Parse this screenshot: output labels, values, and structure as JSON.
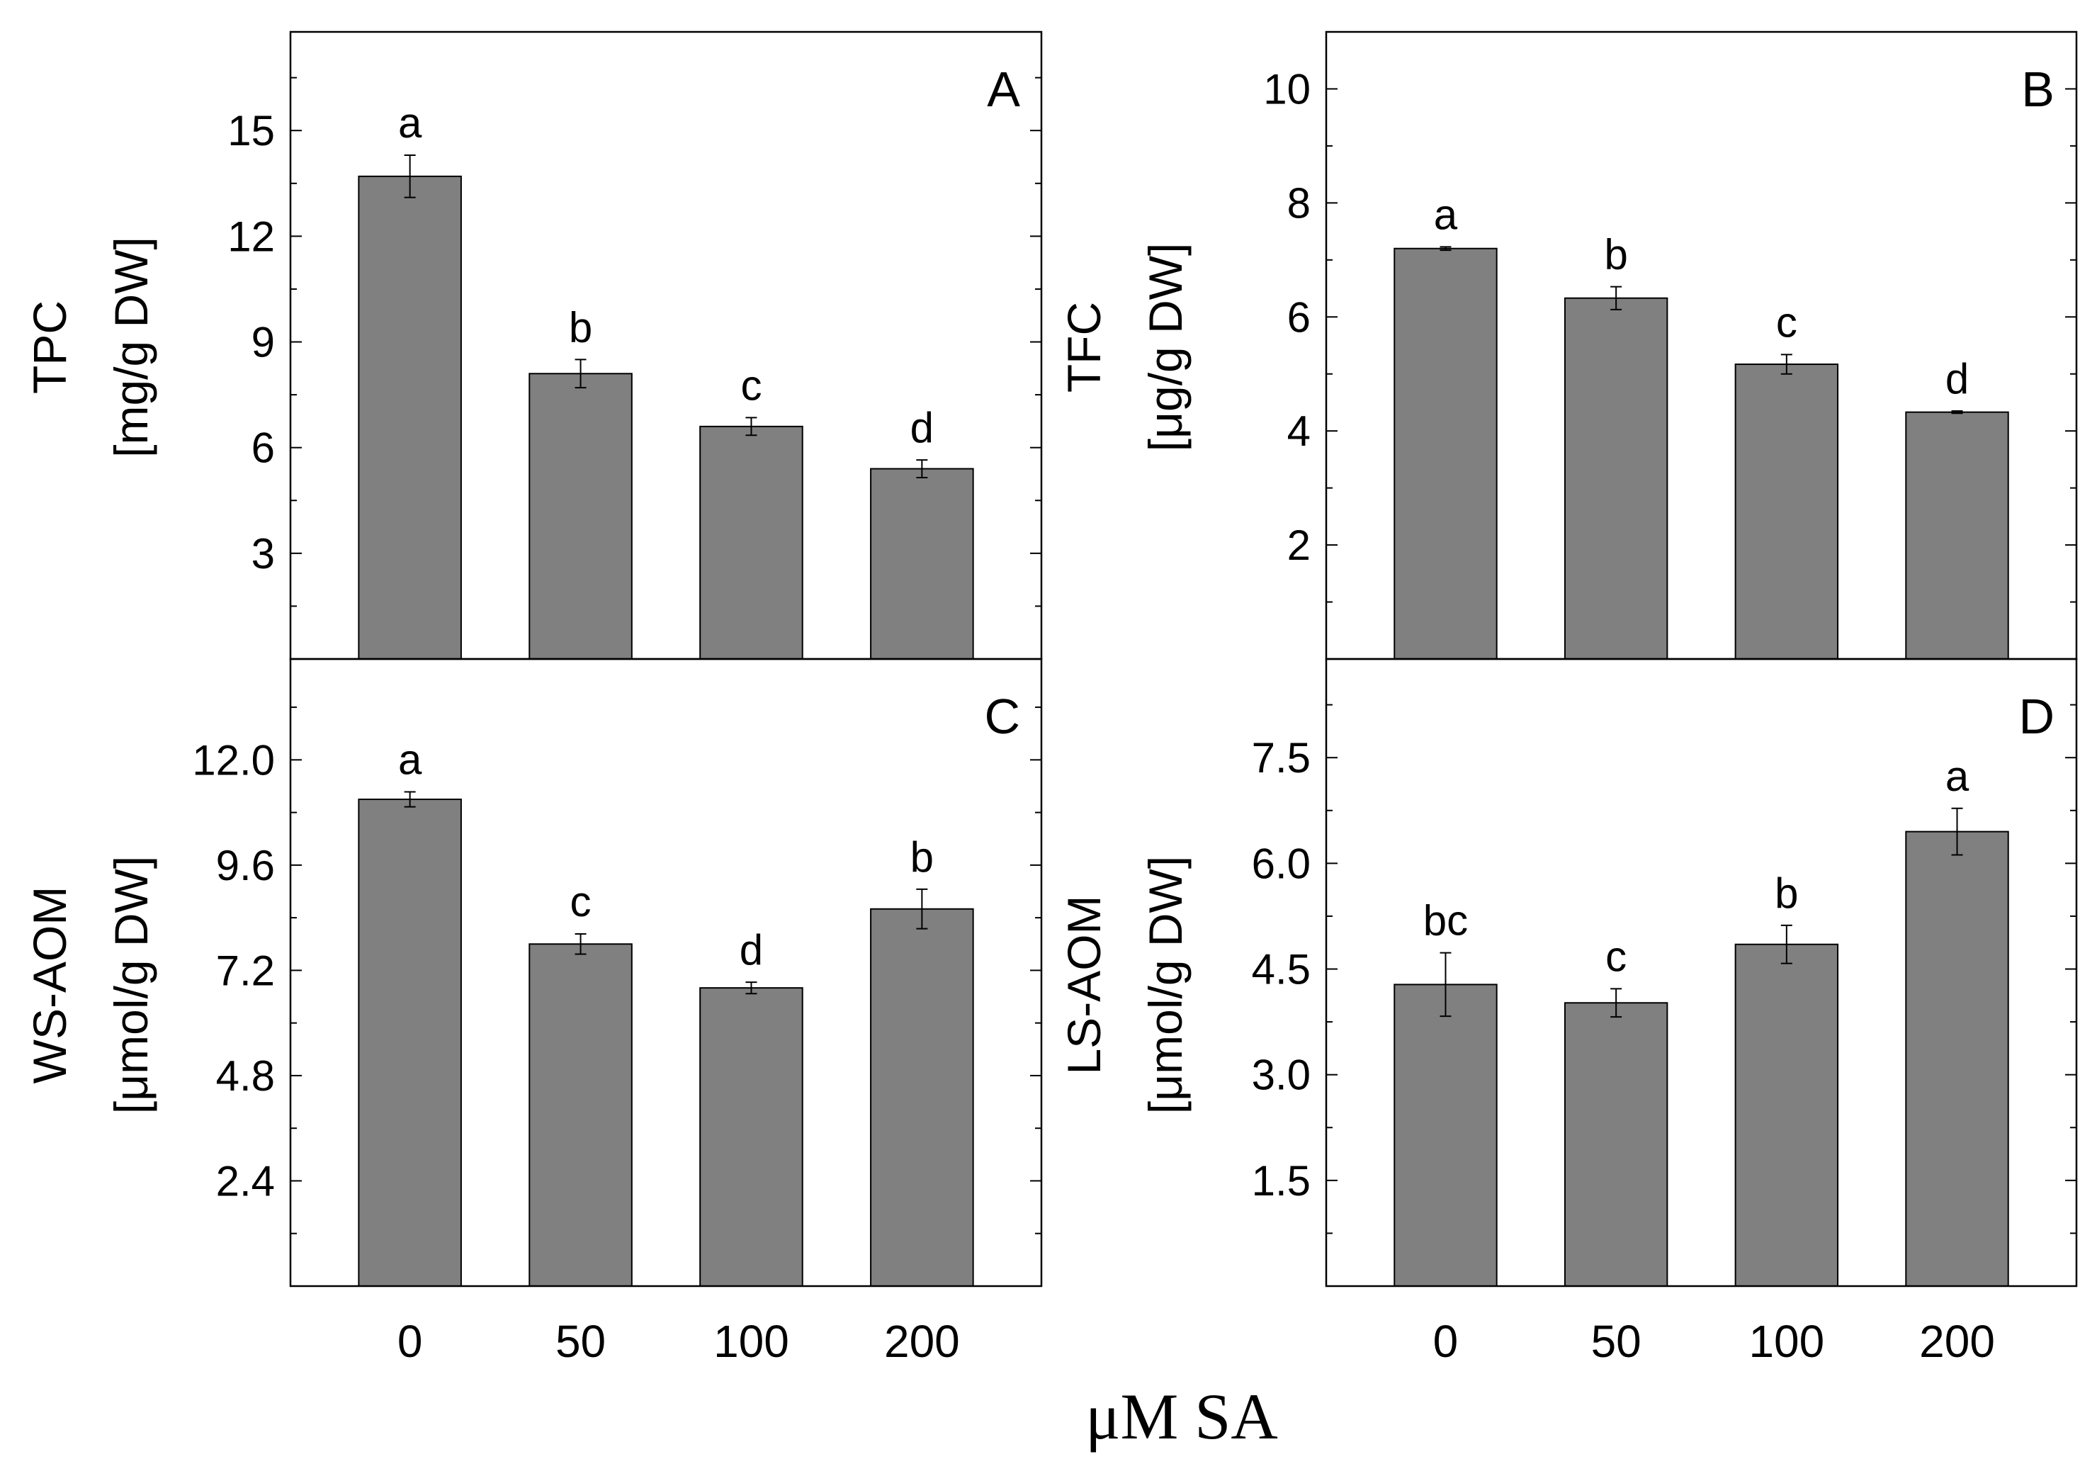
{
  "chart_data": [
    {
      "id": "A",
      "type": "bar",
      "panel_label": "A",
      "categories": [
        "0",
        "50",
        "100",
        "200"
      ],
      "values": [
        13.7,
        8.1,
        6.6,
        5.4
      ],
      "errors": [
        0.6,
        0.4,
        0.25,
        0.25
      ],
      "significance": [
        "a",
        "b",
        "c",
        "d"
      ],
      "ylabel_line1": "TPC",
      "ylabel_line2": "[mg/g DW]",
      "ylim": [
        0,
        17.8
      ],
      "yticks": [
        3,
        6,
        9,
        12,
        15
      ],
      "ytick_labels": [
        "3",
        "6",
        "9",
        "12",
        "15"
      ],
      "bar_color": "#808080"
    },
    {
      "id": "B",
      "type": "bar",
      "panel_label": "B",
      "categories": [
        "0",
        "50",
        "100",
        "200"
      ],
      "values": [
        7.2,
        6.33,
        5.17,
        4.33
      ],
      "errors": [
        0.03,
        0.2,
        0.17,
        0.02
      ],
      "significance": [
        "a",
        "b",
        "c",
        "d"
      ],
      "ylabel_line1": "TFC",
      "ylabel_line2": "[μg/g DW]",
      "ylim": [
        0,
        11
      ],
      "yticks": [
        2,
        4,
        6,
        8,
        10
      ],
      "ytick_labels": [
        "2",
        "4",
        "6",
        "8",
        "10"
      ],
      "bar_color": "#808080"
    },
    {
      "id": "C",
      "type": "bar",
      "panel_label": "C",
      "categories": [
        "0",
        "50",
        "100",
        "200"
      ],
      "values": [
        11.1,
        7.8,
        6.8,
        8.6
      ],
      "errors": [
        0.17,
        0.23,
        0.13,
        0.45
      ],
      "significance": [
        "a",
        "c",
        "d",
        "b"
      ],
      "ylabel_line1": "WS-AOM",
      "ylabel_line2": "[μmol/g DW]",
      "ylim": [
        0,
        14.3
      ],
      "yticks": [
        2.4,
        4.8,
        7.2,
        9.6,
        12.0
      ],
      "ytick_labels": [
        "2.4",
        "4.8",
        "7.2",
        "9.6",
        "12.0"
      ],
      "bar_color": "#808080"
    },
    {
      "id": "D",
      "type": "bar",
      "panel_label": "D",
      "categories": [
        "0",
        "50",
        "100",
        "200"
      ],
      "values": [
        4.28,
        4.02,
        4.85,
        6.45
      ],
      "errors": [
        0.45,
        0.2,
        0.27,
        0.33
      ],
      "significance": [
        "bc",
        "c",
        "b",
        "a"
      ],
      "ylabel_line1": "LS-AOM",
      "ylabel_line2": "[μmol/g DW]",
      "ylim": [
        0,
        8.9
      ],
      "yticks": [
        1.5,
        3.0,
        4.5,
        6.0,
        7.5
      ],
      "ytick_labels": [
        "1.5",
        "3.0",
        "4.5",
        "6.0",
        "7.5"
      ],
      "bar_color": "#808080"
    }
  ],
  "xlabel": "μM SA"
}
